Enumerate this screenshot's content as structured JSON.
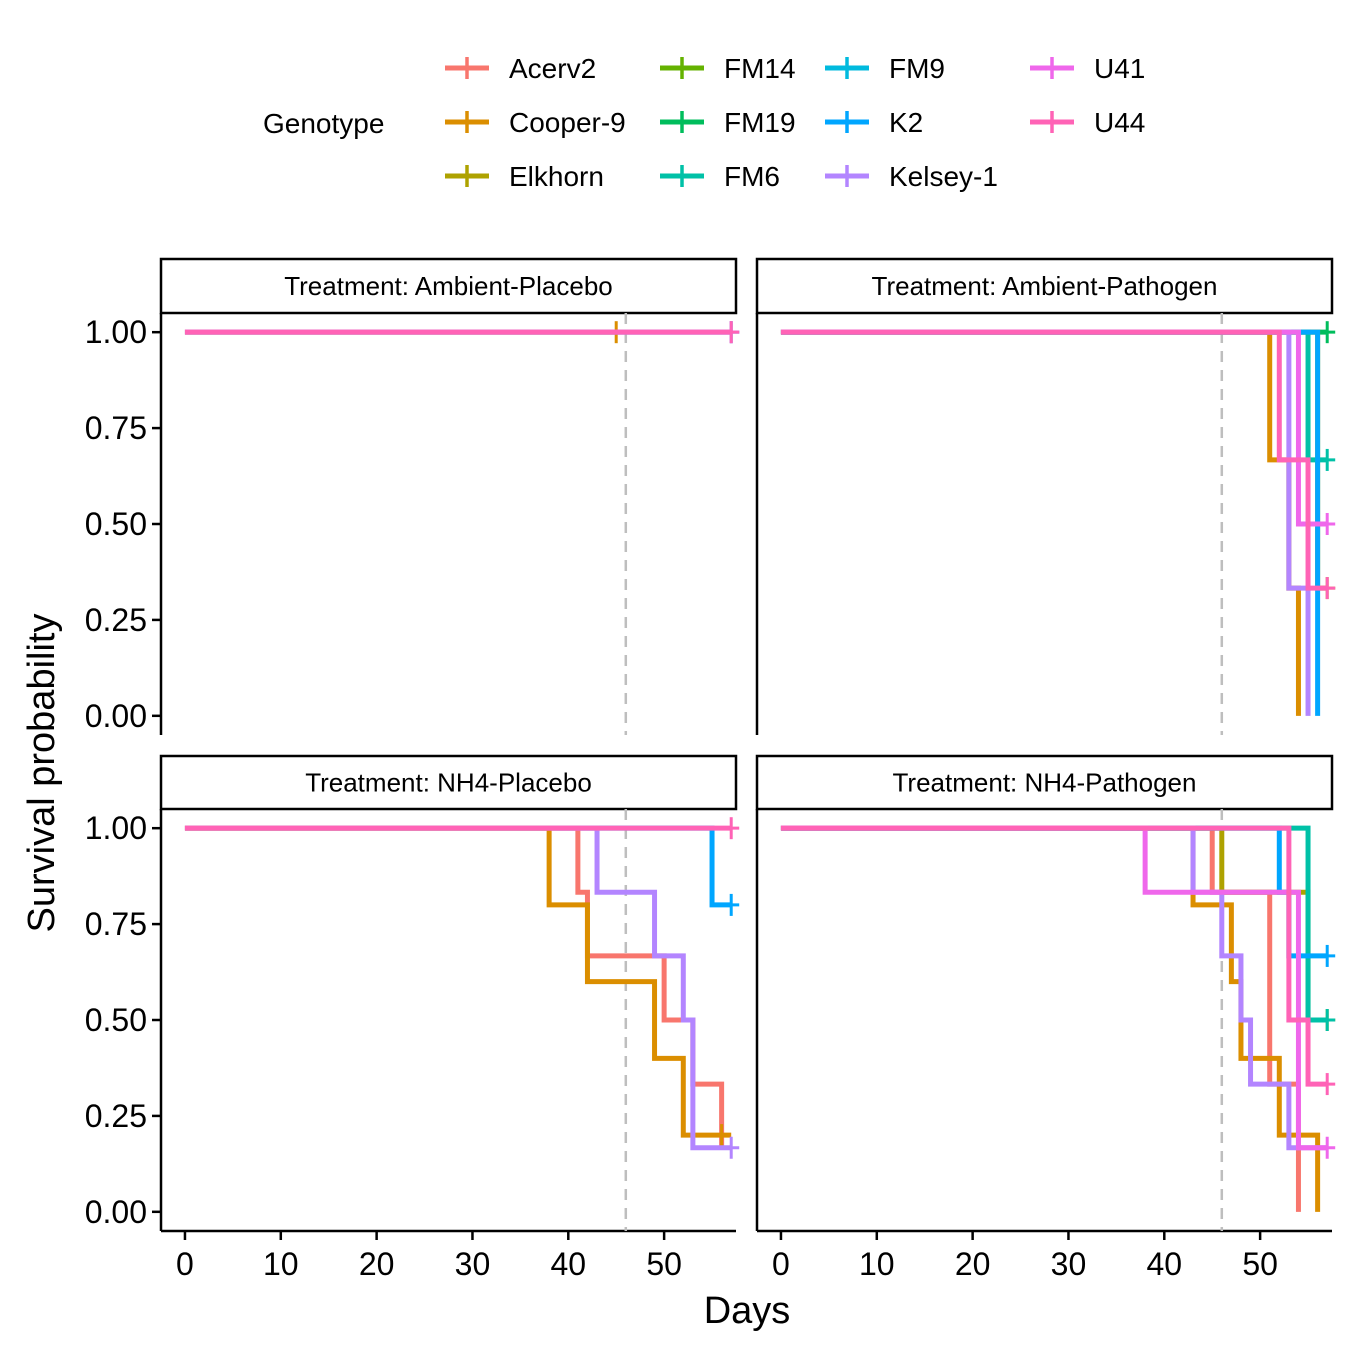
{
  "chart_data": {
    "type": "line",
    "subtype": "kaplan-meier-step",
    "xlabel": "Days",
    "ylabel": "Survival probability",
    "xlim": [
      -2.5,
      57.5
    ],
    "ylim": [
      -0.05,
      1.05
    ],
    "xticks": [
      0,
      10,
      20,
      30,
      40,
      50
    ],
    "yticks": [
      0,
      0.25,
      0.5,
      0.75,
      1
    ],
    "ytick_labels": [
      "0.00",
      "0.25",
      "0.50",
      "0.75",
      "1.00"
    ],
    "reference_line": {
      "x": 46,
      "style": "dashed",
      "color": "#BEBEBE"
    },
    "grid": false,
    "legend": {
      "title": "Genotype",
      "position": "top",
      "entries": [
        {
          "name": "Acerv2",
          "color": "#F8766D"
        },
        {
          "name": "Cooper-9",
          "color": "#DB8E00"
        },
        {
          "name": "Elkhorn",
          "color": "#AEA200"
        },
        {
          "name": "FM14",
          "color": "#64B200"
        },
        {
          "name": "FM19",
          "color": "#00BD5C"
        },
        {
          "name": "FM6",
          "color": "#00C1A7"
        },
        {
          "name": "FM9",
          "color": "#00BADE"
        },
        {
          "name": "K2",
          "color": "#00A6FF"
        },
        {
          "name": "Kelsey-1",
          "color": "#B385FF"
        },
        {
          "name": "U41",
          "color": "#EF67EB"
        },
        {
          "name": "U44",
          "color": "#FF63B6"
        }
      ]
    },
    "panels": [
      {
        "strip": "Treatment: Ambient-Placebo",
        "series": [
          {
            "name": "Cooper-9",
            "color": "#DB8E00",
            "times": [
              0
            ],
            "surv": [
              1
            ],
            "end": 45,
            "censor": [
              [
                45,
                1
              ]
            ]
          },
          {
            "name": "K2",
            "color": "#00A6FF",
            "times": [
              0
            ],
            "surv": [
              1
            ],
            "end": 57,
            "censor": [
              [
                57,
                1
              ]
            ]
          },
          {
            "name": "U41",
            "color": "#EF67EB",
            "times": [
              0
            ],
            "surv": [
              1
            ],
            "end": 57,
            "censor": [
              [
                57,
                1
              ]
            ]
          },
          {
            "name": "U44",
            "color": "#FF63B6",
            "times": [
              0
            ],
            "surv": [
              1
            ],
            "end": 57,
            "censor": [
              [
                57,
                1
              ]
            ]
          }
        ]
      },
      {
        "strip": "Treatment: Ambient-Pathogen",
        "series": [
          {
            "name": "FM19",
            "color": "#00BD5C",
            "times": [
              0
            ],
            "surv": [
              1
            ],
            "end": 57,
            "censor": [
              [
                57,
                1
              ]
            ]
          },
          {
            "name": "Cooper-9",
            "color": "#DB8E00",
            "times": [
              0,
              51,
              53,
              54
            ],
            "surv": [
              1,
              0.667,
              0.333,
              0
            ],
            "end": 54,
            "censor": []
          },
          {
            "name": "Elkhorn",
            "color": "#AEA200",
            "times": [
              0,
              56
            ],
            "surv": [
              1,
              0.333
            ],
            "end": 57,
            "censor": [
              [
                57,
                0.333
              ]
            ]
          },
          {
            "name": "FM6",
            "color": "#00C1A7",
            "times": [
              0,
              55
            ],
            "surv": [
              1,
              0.667
            ],
            "end": 57,
            "censor": [
              [
                57,
                0.667
              ]
            ]
          },
          {
            "name": "K2",
            "color": "#00A6FF",
            "times": [
              0,
              56
            ],
            "surv": [
              1,
              0
            ],
            "end": 56,
            "censor": []
          },
          {
            "name": "Kelsey-1",
            "color": "#B385FF",
            "times": [
              0,
              53,
              55
            ],
            "surv": [
              1,
              0.333,
              0
            ],
            "end": 55,
            "censor": []
          },
          {
            "name": "U41",
            "color": "#EF67EB",
            "times": [
              0,
              54
            ],
            "surv": [
              1,
              0.5
            ],
            "end": 57,
            "censor": [
              [
                57,
                0.5
              ]
            ]
          },
          {
            "name": "U44",
            "color": "#FF63B6",
            "times": [
              0,
              52,
              55
            ],
            "surv": [
              1,
              0.667,
              0.333
            ],
            "end": 57,
            "censor": [
              [
                57,
                0.333
              ]
            ]
          }
        ]
      },
      {
        "strip": "Treatment: NH4-Placebo",
        "series": [
          {
            "name": "K2",
            "color": "#00A6FF",
            "times": [
              0,
              55
            ],
            "surv": [
              1,
              0.8
            ],
            "end": 57,
            "censor": [
              [
                57,
                0.8
              ]
            ]
          },
          {
            "name": "Acerv2",
            "color": "#F8766D",
            "times": [
              0,
              41,
              42,
              50,
              53,
              56
            ],
            "surv": [
              1,
              0.833,
              0.667,
              0.5,
              0.333,
              0.167
            ],
            "end": 56,
            "censor": []
          },
          {
            "name": "Cooper-9",
            "color": "#DB8E00",
            "times": [
              0,
              38,
              42,
              49,
              52
            ],
            "surv": [
              1,
              0.8,
              0.6,
              0.4,
              0.2
            ],
            "end": 57,
            "censor": [
              [
                56,
                0.2
              ]
            ]
          },
          {
            "name": "Kelsey-1",
            "color": "#B385FF",
            "times": [
              0,
              43,
              49,
              52,
              53
            ],
            "surv": [
              1,
              0.833,
              0.667,
              0.5,
              0.167
            ],
            "end": 57,
            "censor": [
              [
                57,
                0.167
              ]
            ]
          },
          {
            "name": "U44",
            "color": "#FF63B6",
            "times": [
              0
            ],
            "surv": [
              1
            ],
            "end": 57,
            "censor": [
              [
                57,
                1
              ]
            ]
          }
        ]
      },
      {
        "strip": "Treatment: NH4-Pathogen",
        "series": [
          {
            "name": "Acerv2",
            "color": "#F8766D",
            "times": [
              0,
              45,
              51,
              54
            ],
            "surv": [
              1,
              0.833,
              0.333,
              0
            ],
            "end": 54,
            "censor": []
          },
          {
            "name": "Cooper-9",
            "color": "#DB8E00",
            "times": [
              0,
              43,
              47,
              48,
              52,
              56
            ],
            "surv": [
              1,
              0.8,
              0.6,
              0.4,
              0.2,
              0
            ],
            "end": 56,
            "censor": []
          },
          {
            "name": "Elkhorn",
            "color": "#AEA200",
            "times": [
              0,
              46,
              55
            ],
            "surv": [
              1,
              0.833,
              0.5
            ],
            "end": 57,
            "censor": [
              [
                57,
                0.5
              ]
            ]
          },
          {
            "name": "FM6",
            "color": "#00C1A7",
            "times": [
              0,
              55
            ],
            "surv": [
              1,
              0.5
            ],
            "end": 57,
            "censor": [
              [
                57,
                0.5
              ]
            ]
          },
          {
            "name": "K2",
            "color": "#00A6FF",
            "times": [
              0,
              52,
              53
            ],
            "surv": [
              1,
              0.833,
              0.667
            ],
            "end": 57,
            "censor": [
              [
                57,
                0.667
              ]
            ]
          },
          {
            "name": "Kelsey-1",
            "color": "#B385FF",
            "times": [
              0,
              43,
              46,
              48,
              49,
              53
            ],
            "surv": [
              1,
              0.833,
              0.667,
              0.5,
              0.333,
              0.167
            ],
            "end": 57,
            "censor": []
          },
          {
            "name": "U41",
            "color": "#EF67EB",
            "times": [
              0,
              38,
              54
            ],
            "surv": [
              1,
              0.833,
              0.167
            ],
            "end": 57,
            "censor": [
              [
                57,
                0.167
              ]
            ]
          },
          {
            "name": "U44",
            "color": "#FF63B6",
            "times": [
              0,
              53,
              55
            ],
            "surv": [
              1,
              0.5,
              0.333
            ],
            "end": 57,
            "censor": [
              [
                57,
                0.333
              ]
            ]
          }
        ]
      }
    ]
  }
}
